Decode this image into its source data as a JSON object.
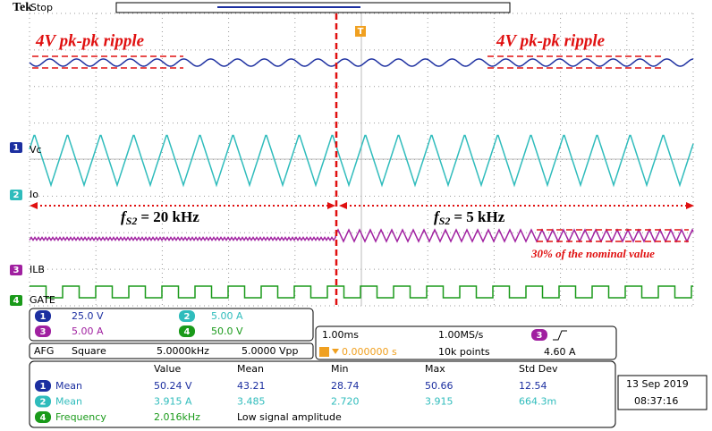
{
  "header": {
    "brand": "Tek",
    "state": "Stop",
    "trigger_marker": "T"
  },
  "annotations": {
    "ripple_left": "4V pk-pk ripple",
    "ripple_right": "4V pk-pk ripple",
    "freq_left": {
      "symbol": "f",
      "subscript": "S2",
      "equation": "= 20 kHz"
    },
    "freq_right": {
      "symbol": "f",
      "subscript": "S2",
      "equation": "= 5 kHz"
    },
    "nominal": "30% of the nominal value"
  },
  "channels": [
    {
      "number": "1",
      "label": "Vc",
      "scale": "25.0 V"
    },
    {
      "number": "2",
      "label": "Io",
      "scale": "5.00 A"
    },
    {
      "number": "3",
      "label": "ILB",
      "scale": "5.00 A"
    },
    {
      "number": "4",
      "label": "GATE",
      "scale": "50.0 V"
    }
  ],
  "afg": {
    "label": "AFG",
    "waveform": "Square",
    "frequency": "5.0000kHz",
    "amplitude": "5.0000 Vpp"
  },
  "acquisition": {
    "time_per_div": "1.00ms",
    "sample_rate": "1.00MS/s",
    "trigger_source": "3",
    "trigger_position": "0.000000 s",
    "record_length": "10k points",
    "trigger_level": "4.60 A"
  },
  "measurements": {
    "headers": [
      "Value",
      "Mean",
      "Min",
      "Max",
      "Std Dev"
    ],
    "rows": [
      {
        "channel": "1",
        "name": "Mean",
        "cells": [
          "50.24 V",
          "43.21",
          "28.74",
          "50.66",
          "12.54"
        ]
      },
      {
        "channel": "2",
        "name": "Mean",
        "cells": [
          "3.915 A",
          "3.485",
          "2.720",
          "3.915",
          "664.3m"
        ]
      },
      {
        "channel": "4",
        "name": "Frequency",
        "cells": [
          "2.016kHz",
          "Low signal amplitude"
        ]
      }
    ]
  },
  "datetime": {
    "date": "13 Sep 2019",
    "time": "08:37:16"
  }
}
